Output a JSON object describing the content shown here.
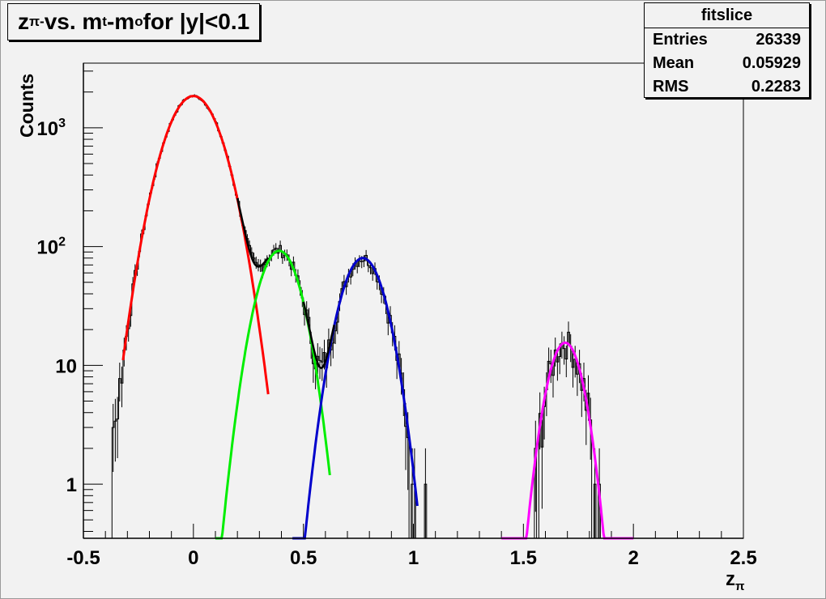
{
  "title": {
    "main": "z",
    "sub": "π-",
    "mid": " vs. m",
    "sub2": "t",
    "mid2": "-m",
    "sub3": "o",
    "tail": " for |y|<0.1"
  },
  "stats": {
    "name": "fitslice",
    "rows": [
      {
        "label": "Entries",
        "value": "26339"
      },
      {
        "label": "Mean",
        "value": "0.05929"
      },
      {
        "label": "RMS",
        "value": "0.2283"
      }
    ]
  },
  "chart_data": {
    "type": "line",
    "xlabel_main": "z",
    "xlabel_sub": "π",
    "ylabel": "Counts",
    "xlim": [
      -0.5,
      2.5
    ],
    "ylim": [
      0.35,
      3500
    ],
    "yscale": "log",
    "x_ticks": [
      "-0.5",
      "0",
      "0.5",
      "1",
      "1.5",
      "2",
      "2.5"
    ],
    "x_tick_values": [
      -0.5,
      0,
      0.5,
      1,
      1.5,
      2,
      2.5
    ],
    "y_ticks": [
      {
        "value": 1000,
        "base": "10",
        "exp": "3"
      },
      {
        "value": 100,
        "base": "10",
        "exp": "2"
      },
      {
        "value": 10,
        "base": "10",
        "exp": ""
      },
      {
        "value": 1,
        "base": "1",
        "exp": ""
      }
    ],
    "grid": false,
    "colors": {
      "histogram": "#000000",
      "fit1": "#ff0000",
      "fit2": "#00ee00",
      "fit3": "#0000cc",
      "fit4": "#ff00ff",
      "total": "#000000"
    },
    "series": [
      {
        "color": "#ff0000",
        "amp": 1850,
        "mean": 0.0,
        "sigma": 0.1,
        "range": [
          -0.32,
          0.34
        ]
      },
      {
        "color": "#00ee00",
        "amp": 92,
        "mean": 0.39,
        "sigma": 0.078,
        "range": [
          0.1,
          0.62
        ]
      },
      {
        "color": "#0000cc",
        "amp": 80,
        "mean": 0.77,
        "sigma": 0.08,
        "range": [
          0.45,
          1.02
        ]
      },
      {
        "color": "#ff00ff",
        "amp": 15.5,
        "mean": 1.69,
        "sigma": 0.064,
        "range": [
          1.4,
          2.0
        ]
      }
    ],
    "histogram_bin_width": 0.01
  }
}
